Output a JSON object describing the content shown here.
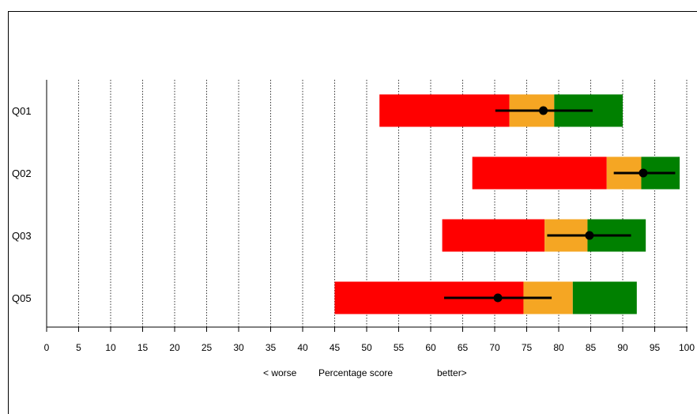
{
  "chart_data": {
    "type": "bar",
    "orientation": "horizontal",
    "categories": [
      "Q01",
      "Q02",
      "Q03",
      "Q05"
    ],
    "bands": [
      {
        "category": "Q01",
        "red": [
          52,
          72.3
        ],
        "orange": [
          72.3,
          79.3
        ],
        "green": [
          79.3,
          90
        ],
        "color_red": "#ff0000",
        "color_orange": "#f5a623",
        "color_green": "#008000"
      },
      {
        "category": "Q02",
        "red": [
          66.5,
          87.5
        ],
        "orange": [
          87.5,
          92.9
        ],
        "green": [
          92.9,
          98.9
        ],
        "color_red": "#ff0000",
        "color_orange": "#f5a623",
        "color_green": "#008000"
      },
      {
        "category": "Q03",
        "red": [
          61.8,
          77.8
        ],
        "orange": [
          77.8,
          84.5
        ],
        "green": [
          84.5,
          93.6
        ],
        "color_red": "#ff0000",
        "color_orange": "#f5a623",
        "color_green": "#008000"
      },
      {
        "category": "Q05",
        "red": [
          45,
          74.5
        ],
        "orange": [
          74.5,
          82.2
        ],
        "green": [
          82.2,
          92.2
        ],
        "color_red": "#ff0000",
        "color_orange": "#f5a623",
        "color_green": "#008000"
      }
    ],
    "points": [
      {
        "category": "Q01",
        "value": 77.6,
        "low": 70.1,
        "high": 85.3
      },
      {
        "category": "Q02",
        "value": 93.2,
        "low": 88.6,
        "high": 98.2
      },
      {
        "category": "Q03",
        "value": 84.8,
        "low": 78.2,
        "high": 91.3
      },
      {
        "category": "Q05",
        "value": 70.5,
        "low": 62.1,
        "high": 78.9
      }
    ],
    "xlim": [
      0,
      100
    ],
    "xticks": [
      0,
      5,
      10,
      15,
      20,
      25,
      30,
      35,
      40,
      45,
      50,
      55,
      60,
      65,
      70,
      75,
      80,
      85,
      90,
      95,
      100
    ],
    "grid": "vertical dotted at each tick",
    "xlabel_left": "< worse",
    "xlabel": "Percentage score",
    "xlabel_right": "better>",
    "point_color": "#000000"
  }
}
